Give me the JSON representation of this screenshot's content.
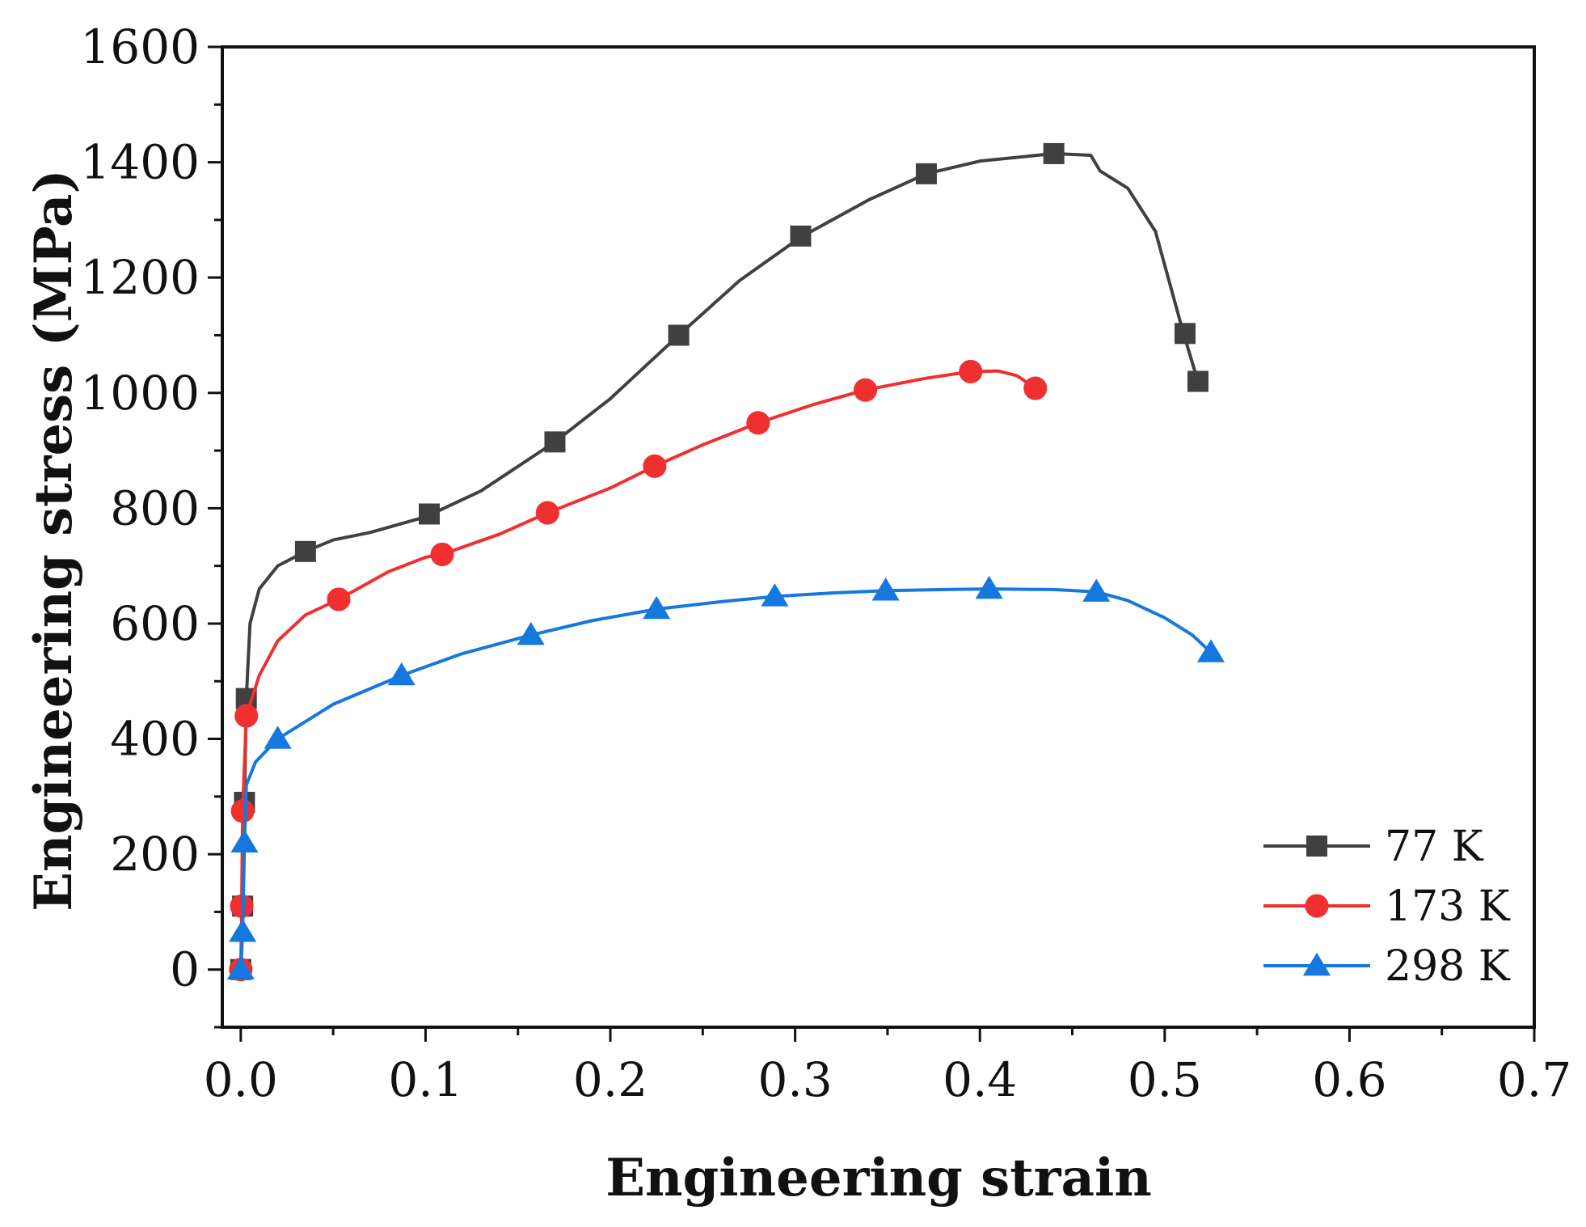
{
  "chart_data": {
    "type": "line",
    "title": "",
    "xlabel": "Engineering strain",
    "ylabel": "Engineering stress (MPa)",
    "xlim": [
      -0.01,
      0.7
    ],
    "ylim": [
      -100,
      1600
    ],
    "xticks": [
      0.0,
      0.1,
      0.2,
      0.3,
      0.4,
      0.5,
      0.6,
      0.7
    ],
    "xtick_labels": [
      "0.0",
      "0.1",
      "0.2",
      "0.3",
      "0.4",
      "0.5",
      "0.6",
      "0.7"
    ],
    "yticks": [
      0,
      200,
      400,
      600,
      800,
      1000,
      1200,
      1400,
      1600
    ],
    "ytick_labels": [
      "0",
      "200",
      "400",
      "600",
      "800",
      "1000",
      "1200",
      "1400",
      "1600"
    ],
    "grid": false,
    "legend_position": "bottom-right",
    "series": [
      {
        "name": "77 K",
        "color": "#404040",
        "marker": "square",
        "line": [
          [
            0.0,
            0
          ],
          [
            0.001,
            110
          ],
          [
            0.002,
            290
          ],
          [
            0.003,
            470
          ],
          [
            0.005,
            600
          ],
          [
            0.01,
            660
          ],
          [
            0.02,
            700
          ],
          [
            0.035,
            725
          ],
          [
            0.05,
            745
          ],
          [
            0.07,
            758
          ],
          [
            0.1,
            785
          ],
          [
            0.13,
            830
          ],
          [
            0.17,
            915
          ],
          [
            0.2,
            990
          ],
          [
            0.237,
            1100
          ],
          [
            0.27,
            1195
          ],
          [
            0.303,
            1270
          ],
          [
            0.34,
            1335
          ],
          [
            0.371,
            1380
          ],
          [
            0.4,
            1402
          ],
          [
            0.44,
            1415
          ],
          [
            0.46,
            1412
          ],
          [
            0.465,
            1385
          ],
          [
            0.48,
            1355
          ],
          [
            0.495,
            1280
          ],
          [
            0.51,
            1105
          ],
          [
            0.518,
            1020
          ]
        ],
        "markers": [
          [
            0.0,
            0
          ],
          [
            0.001,
            110
          ],
          [
            0.002,
            290
          ],
          [
            0.003,
            470
          ],
          [
            0.035,
            725
          ],
          [
            0.102,
            790
          ],
          [
            0.17,
            915
          ],
          [
            0.237,
            1100
          ],
          [
            0.303,
            1272
          ],
          [
            0.371,
            1380
          ],
          [
            0.44,
            1415
          ],
          [
            0.511,
            1103
          ],
          [
            0.518,
            1020
          ]
        ]
      },
      {
        "name": "173 K",
        "color": "#f03030",
        "marker": "circle",
        "line": [
          [
            0.0,
            0
          ],
          [
            0.0005,
            110
          ],
          [
            0.001,
            275
          ],
          [
            0.003,
            440
          ],
          [
            0.01,
            510
          ],
          [
            0.02,
            570
          ],
          [
            0.035,
            615
          ],
          [
            0.053,
            642
          ],
          [
            0.08,
            690
          ],
          [
            0.1,
            715
          ],
          [
            0.109,
            720
          ],
          [
            0.14,
            755
          ],
          [
            0.166,
            792
          ],
          [
            0.2,
            835
          ],
          [
            0.224,
            873
          ],
          [
            0.25,
            910
          ],
          [
            0.28,
            948
          ],
          [
            0.31,
            980
          ],
          [
            0.338,
            1005
          ],
          [
            0.37,
            1025
          ],
          [
            0.395,
            1037
          ],
          [
            0.41,
            1038
          ],
          [
            0.42,
            1030
          ],
          [
            0.43,
            1008
          ]
        ],
        "markers": [
          [
            0.0,
            0
          ],
          [
            0.0005,
            110
          ],
          [
            0.001,
            275
          ],
          [
            0.003,
            440
          ],
          [
            0.053,
            642
          ],
          [
            0.109,
            720
          ],
          [
            0.166,
            792
          ],
          [
            0.224,
            873
          ],
          [
            0.28,
            948
          ],
          [
            0.338,
            1005
          ],
          [
            0.395,
            1037
          ],
          [
            0.43,
            1008
          ]
        ]
      },
      {
        "name": "298 K",
        "color": "#1478dc",
        "marker": "triangle",
        "line": [
          [
            0.0,
            0
          ],
          [
            0.001,
            65
          ],
          [
            0.002,
            220
          ],
          [
            0.003,
            320
          ],
          [
            0.008,
            360
          ],
          [
            0.02,
            400
          ],
          [
            0.05,
            460
          ],
          [
            0.087,
            510
          ],
          [
            0.12,
            548
          ],
          [
            0.157,
            580
          ],
          [
            0.19,
            605
          ],
          [
            0.225,
            625
          ],
          [
            0.26,
            638
          ],
          [
            0.289,
            647
          ],
          [
            0.32,
            653
          ],
          [
            0.349,
            657
          ],
          [
            0.38,
            659
          ],
          [
            0.405,
            660
          ],
          [
            0.44,
            659
          ],
          [
            0.463,
            655
          ],
          [
            0.48,
            640
          ],
          [
            0.5,
            610
          ],
          [
            0.515,
            580
          ],
          [
            0.525,
            550
          ]
        ],
        "markers": [
          [
            0.0,
            0
          ],
          [
            0.001,
            65
          ],
          [
            0.002,
            220
          ],
          [
            0.02,
            400
          ],
          [
            0.087,
            510
          ],
          [
            0.157,
            580
          ],
          [
            0.225,
            625
          ],
          [
            0.289,
            647
          ],
          [
            0.349,
            657
          ],
          [
            0.405,
            660
          ],
          [
            0.463,
            655
          ],
          [
            0.525,
            550
          ]
        ]
      }
    ]
  }
}
